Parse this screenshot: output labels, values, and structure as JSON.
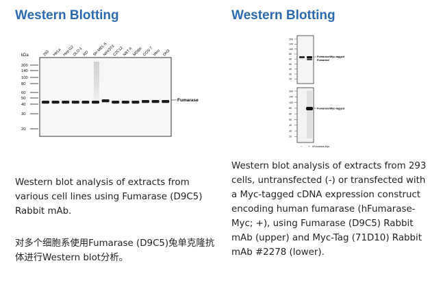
{
  "left": {
    "heading": "Western Blotting",
    "lanes": [
      "293",
      "HeLa",
      "Hep G2",
      "DLD-1",
      "RD",
      "SK-MEL-5",
      "NIH/3T3",
      "C2C12",
      "NBT-II",
      "MDBK",
      "COS-7",
      "Vero",
      "DH3"
    ],
    "mw_markers": [
      "200",
      "140",
      "100",
      "80",
      "60",
      "50",
      "40",
      "30",
      "20"
    ],
    "kda": "kDa",
    "band_label": "Fumarase",
    "caption_en": "Western blot analysis of extracts from various cell lines using Fumarase (D9C5) Rabbit mAb.",
    "caption_cn": "对多个细胞系使用Fumarase (D9C5)兔单克隆抗体进行Western blot分析。"
  },
  "right": {
    "heading": "Western Blotting",
    "upper_band_label_1": "Fumarase/Myc-tagged",
    "upper_band_label_2": "Fumarase",
    "lower_band_label": "Fumarase/Myc-tagged",
    "lane_minus": "−",
    "lane_plus": "+",
    "lane_caption": "hFumarase-Myc",
    "mw_markers_upper": [
      "200",
      "140",
      "100",
      "80",
      "60",
      "50",
      "40",
      "30",
      "20"
    ],
    "mw_markers_lower": [
      "200",
      "140",
      "100",
      "80",
      "60",
      "50",
      "40",
      "30",
      "20"
    ],
    "caption_en": "Western blot analysis of extracts from 293 cells, untransfected (-) or transfected with a Myc-tagged cDNA expression construct encoding human fumarase (hFumarase-Myc; +), using Fumarase (D9C5) Rabbit mAb (upper) and Myc-Tag (71D10) Rabbit mAb #2278 (lower)."
  }
}
